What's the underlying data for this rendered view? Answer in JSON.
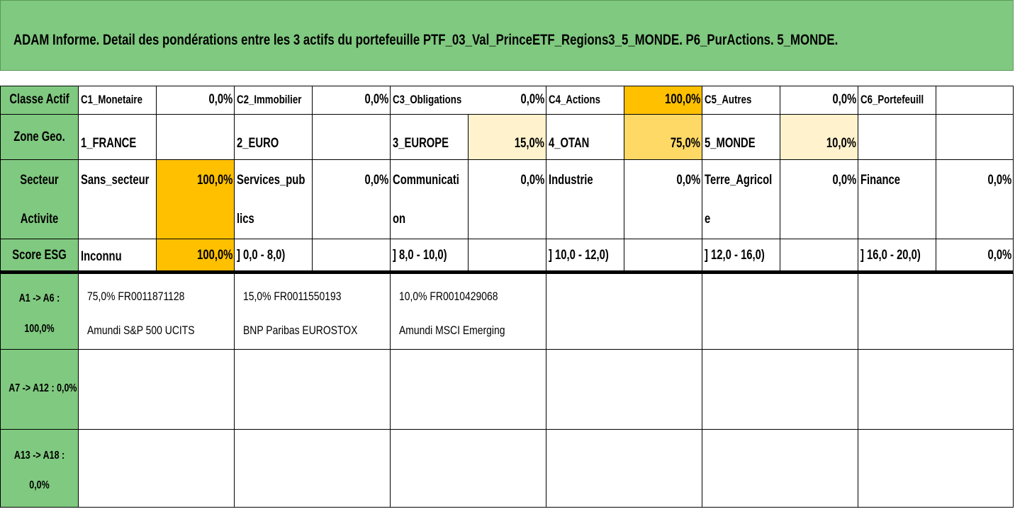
{
  "title": "ADAM Informe. Detail des pondérations entre les 3 actifs du portefeuille PTF_03_Val_PrinceETF_Regions3_5_MONDE. P6_PurActions. 5_MONDE.",
  "colors": {
    "header_green": "#80c980",
    "highlight_full": "#ffc000",
    "highlight_mid": "#ffd966",
    "highlight_low": "#fff2cc"
  },
  "classe_actif": {
    "label": "Classe Actif",
    "items": [
      {
        "name": "C1_Monetaire",
        "value": "0,0%"
      },
      {
        "name": "C2_Immobilier",
        "value": "0,0%"
      },
      {
        "name": "C3_Obligations",
        "value": "0,0%"
      },
      {
        "name": "C4_Actions",
        "value": "100,0%"
      },
      {
        "name": "C5_Autres",
        "value": "0,0%"
      },
      {
        "name": "C6_Portefeuill",
        "value": ""
      }
    ]
  },
  "zone_geo": {
    "label": "Zone Geo.",
    "items": [
      {
        "name": "1_FRANCE",
        "value": ""
      },
      {
        "name": "2_EURO",
        "value": ""
      },
      {
        "name": "3_EUROPE",
        "value": "15,0%"
      },
      {
        "name": "4_OTAN",
        "value": "75,0%"
      },
      {
        "name": "5_MONDE",
        "value": "10,0%"
      },
      {
        "name": "",
        "value": ""
      }
    ]
  },
  "secteur": {
    "label_line1": "Secteur",
    "label_line2": "Activite",
    "items": [
      {
        "name_line1": "Sans_secteur",
        "name_line2": "",
        "value": "100,0%"
      },
      {
        "name_line1": "Services_pub",
        "name_line2": "lics",
        "value": "0,0%"
      },
      {
        "name_line1": "Communicati",
        "name_line2": "on",
        "value": "0,0%"
      },
      {
        "name_line1": "Industrie",
        "name_line2": "",
        "value": "0,0%"
      },
      {
        "name_line1": "Terre_Agricol",
        "name_line2": "e",
        "value": "0,0%"
      },
      {
        "name_line1": "Finance",
        "name_line2": "",
        "value": "0,0%"
      }
    ]
  },
  "score_esg": {
    "label": "Score ESG",
    "items": [
      {
        "name": "Inconnu",
        "value": "100,0%"
      },
      {
        "name": "] 0,0 - 8,0)",
        "value": ""
      },
      {
        "name": "] 8,0 - 10,0)",
        "value": ""
      },
      {
        "name": "] 10,0 - 12,0)",
        "value": ""
      },
      {
        "name": "] 12,0 - 16,0)",
        "value": ""
      },
      {
        "name": "] 16,0 - 20,0)",
        "value": "0,0%"
      }
    ]
  },
  "actifs": [
    {
      "label_line1": "A1 -> A6 :",
      "label_line2": "100,0%",
      "assets": [
        {
          "line1": "75,0% FR0011871128",
          "line2": "Amundi S&P 500 UCITS"
        },
        {
          "line1": "15,0% FR0011550193",
          "line2": "BNP Paribas EUROSTOX"
        },
        {
          "line1": "10,0% FR0010429068",
          "line2": "Amundi MSCI Emerging"
        }
      ]
    },
    {
      "label_line1": "A7 -> A12 : 0,0%",
      "label_line2": "",
      "assets": []
    },
    {
      "label_line1": "A13 -> A18 :",
      "label_line2": "0,0%",
      "assets": []
    }
  ]
}
